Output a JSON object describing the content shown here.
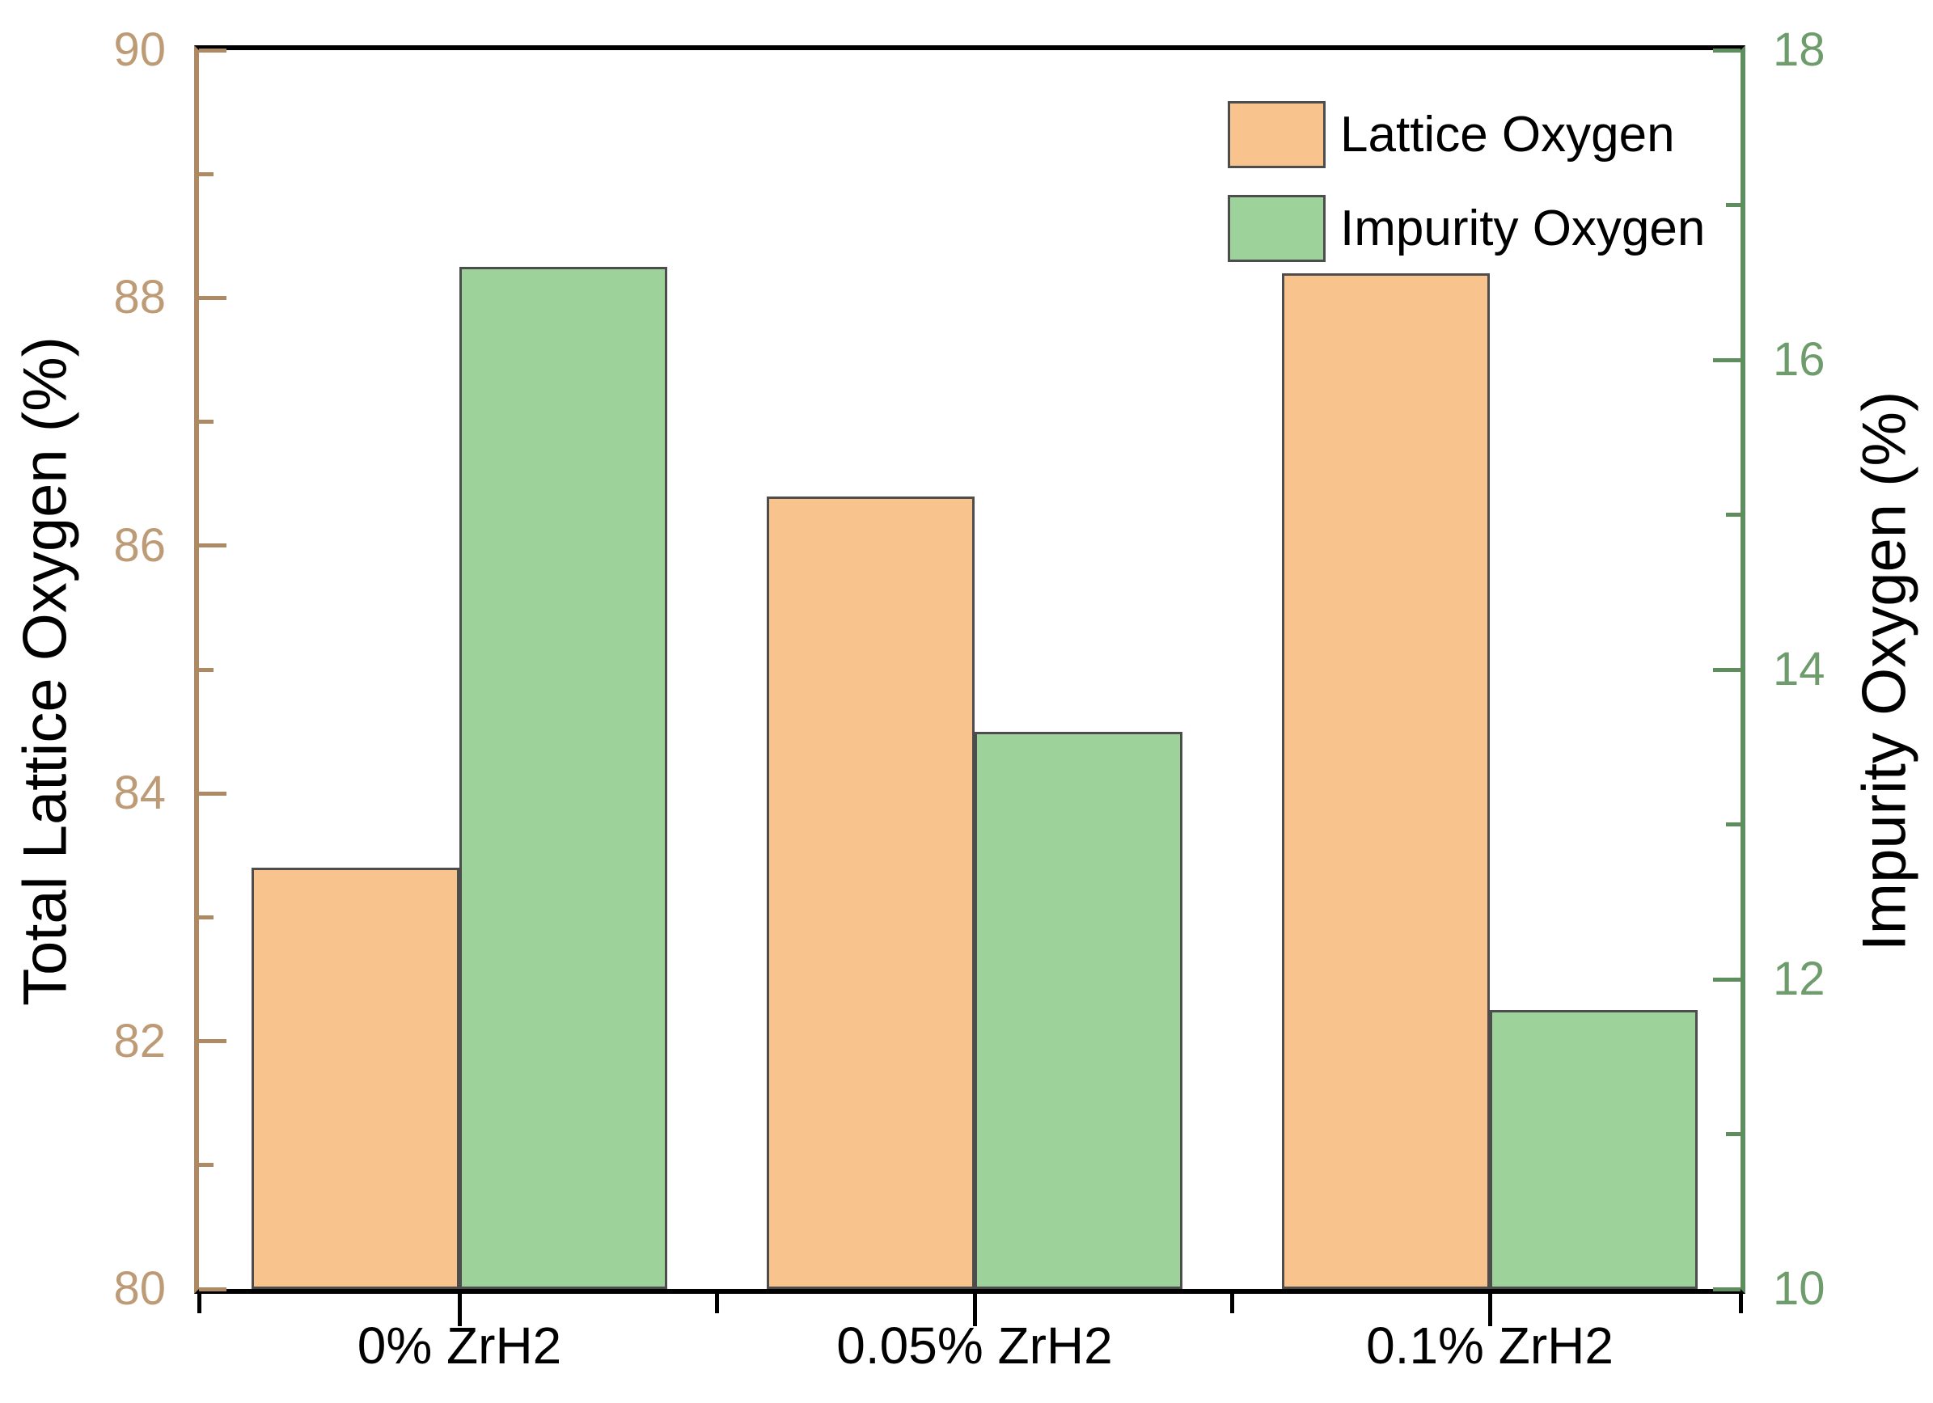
{
  "chart_data": {
    "type": "bar",
    "title": "",
    "categories": [
      "0% ZrH2",
      "0.05% ZrH2",
      "0.1% ZrH2"
    ],
    "series": [
      {
        "name": "Lattice Oxygen",
        "axis": "left",
        "color": "#F9C38E",
        "values": [
          83.4,
          86.4,
          88.2
        ]
      },
      {
        "name": "Impurity Oxygen",
        "axis": "right",
        "color": "#9DD39B",
        "values": [
          16.6,
          13.6,
          11.8
        ]
      }
    ],
    "left_axis": {
      "label": "Total Lattice Oxygen (%)",
      "min": 80,
      "max": 90,
      "major_ticks": [
        90,
        88,
        86,
        84,
        82,
        80
      ],
      "minor_step": 1,
      "color": "#AE8A64",
      "label_color": "#BD9B76"
    },
    "right_axis": {
      "label": "Impurity Oxygen (%)",
      "min": 10,
      "max": 18,
      "major_ticks": [
        18,
        16,
        14,
        12,
        10
      ],
      "minor_step": 1,
      "color": "#5E8E5D",
      "label_color": "#6E9C6C"
    },
    "legend": {
      "position": "top-right",
      "entries": [
        "Lattice Oxygen",
        "Impurity Oxygen"
      ]
    },
    "bar_border_color": "#4D4D4D",
    "grid": false
  }
}
